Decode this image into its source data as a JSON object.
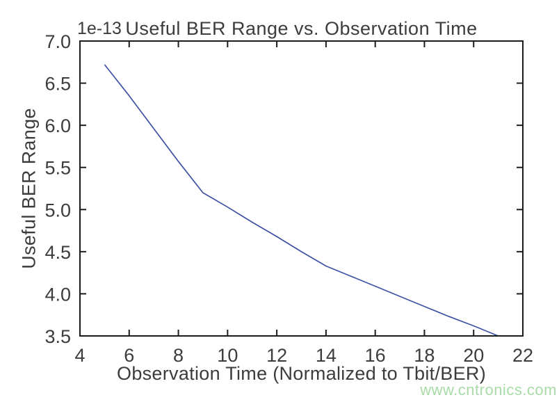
{
  "figure": {
    "title": "Useful BER Range vs. Observation Time",
    "offset_label": "1e-13",
    "xlabel": "Observation Time (Normalized to Tbit/BER)",
    "ylabel": "Useful BER Range",
    "watermark": "www.cntronics.com"
  },
  "chart_data": {
    "type": "line",
    "title": "Useful BER Range vs. Observation Time",
    "xlabel": "Observation Time (Normalized to Tbit/BER)",
    "ylabel": "Useful BER Range",
    "y_unit_multiplier": "1e-13",
    "series": [
      {
        "name": "Useful BER Range",
        "x": [
          5,
          6,
          7,
          8,
          9,
          10,
          11,
          12,
          13,
          14,
          15,
          16,
          17,
          18,
          19,
          20,
          21
        ],
        "y": [
          6.72,
          6.35,
          5.96,
          5.57,
          5.2,
          5.03,
          4.85,
          4.68,
          4.5,
          4.33,
          4.21,
          4.09,
          3.97,
          3.85,
          3.73,
          3.62,
          3.5
        ]
      }
    ],
    "xlim": [
      4,
      22
    ],
    "ylim": [
      3.5,
      7.0
    ],
    "xticks": [
      4,
      6,
      8,
      10,
      12,
      14,
      16,
      18,
      20,
      22
    ],
    "yticks": [
      3.5,
      4.0,
      4.5,
      5.0,
      5.5,
      6.0,
      6.5,
      7.0
    ],
    "grid": false,
    "legend": "none",
    "tick_direction": "in",
    "ticks_on_all_sides": true,
    "colors": {
      "line": "#3d51a4",
      "spine": "#1c1c1c",
      "text": "#3c3c3c",
      "watermark": "#a8dba8",
      "background": "#ffffff"
    }
  }
}
